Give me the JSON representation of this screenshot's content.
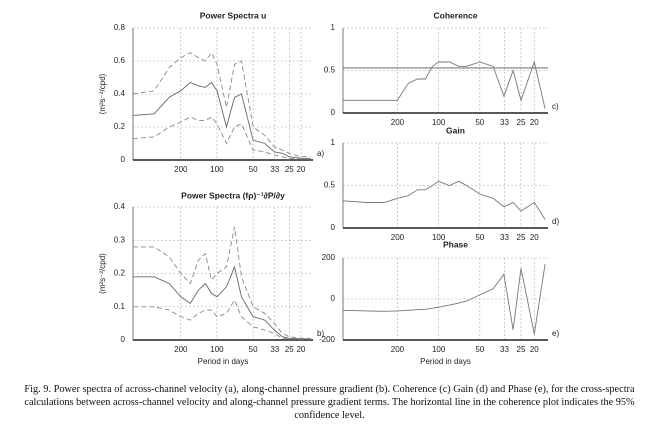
{
  "chart_data": [
    {
      "type": "line",
      "title": "Power Spectra u",
      "ylabel": "(m²s⁻²/cpd)",
      "panel_label": "a)",
      "xscale": "log",
      "grid": true,
      "x": [
        0.002,
        0.003,
        0.004,
        0.005,
        0.006,
        0.007,
        0.008,
        0.009,
        0.01,
        0.012,
        0.014,
        0.016,
        0.02,
        0.025,
        0.03,
        0.035,
        0.04,
        0.05,
        0.06
      ],
      "xlim": [
        0.002,
        0.063
      ],
      "xticks": [
        {
          "value": 0.005,
          "label": "200"
        },
        {
          "value": 0.01,
          "label": "100"
        },
        {
          "value": 0.02,
          "label": "50"
        },
        {
          "value": 0.0303,
          "label": "33"
        },
        {
          "value": 0.04,
          "label": "25"
        },
        {
          "value": 0.05,
          "label": "20"
        }
      ],
      "ylim": [
        0,
        0.8
      ],
      "yticks": [
        0,
        0.2,
        0.4,
        0.6,
        0.8
      ],
      "series": [
        {
          "color": "#888",
          "dash": true,
          "values": [
            0.4,
            0.42,
            0.56,
            0.62,
            0.65,
            0.62,
            0.6,
            0.65,
            0.58,
            0.32,
            0.58,
            0.6,
            0.2,
            0.15,
            0.08,
            0.06,
            0.04,
            0.02,
            0.02
          ]
        },
        {
          "color": "#666",
          "dash": false,
          "values": [
            0.27,
            0.28,
            0.38,
            0.42,
            0.47,
            0.45,
            0.44,
            0.47,
            0.42,
            0.2,
            0.38,
            0.4,
            0.12,
            0.1,
            0.05,
            0.04,
            0.02,
            0.01,
            0.01
          ]
        },
        {
          "color": "#888",
          "dash": true,
          "values": [
            0.13,
            0.14,
            0.2,
            0.23,
            0.26,
            0.24,
            0.24,
            0.26,
            0.22,
            0.1,
            0.2,
            0.22,
            0.06,
            0.05,
            0.03,
            0.02,
            0.01,
            0.005,
            0.005
          ]
        }
      ]
    },
    {
      "type": "line",
      "title": "Power Spectra (fρ)⁻¹∂P/∂y",
      "ylabel": "(m²s⁻²/cpd)",
      "xlabel": "Period in days",
      "panel_label": "b)",
      "xscale": "log",
      "grid": true,
      "x": [
        0.002,
        0.003,
        0.004,
        0.005,
        0.006,
        0.007,
        0.008,
        0.009,
        0.01,
        0.012,
        0.014,
        0.016,
        0.02,
        0.025,
        0.03,
        0.035,
        0.04,
        0.05,
        0.06
      ],
      "xlim": [
        0.002,
        0.063
      ],
      "xticks": [
        {
          "value": 0.005,
          "label": "200"
        },
        {
          "value": 0.01,
          "label": "100"
        },
        {
          "value": 0.02,
          "label": "50"
        },
        {
          "value": 0.0303,
          "label": "33"
        },
        {
          "value": 0.04,
          "label": "25"
        },
        {
          "value": 0.05,
          "label": "20"
        }
      ],
      "ylim": [
        0,
        0.4
      ],
      "yticks": [
        0,
        0.1,
        0.2,
        0.3,
        0.4
      ],
      "series": [
        {
          "color": "#888",
          "dash": true,
          "values": [
            0.28,
            0.28,
            0.25,
            0.2,
            0.17,
            0.24,
            0.26,
            0.18,
            0.2,
            0.22,
            0.34,
            0.19,
            0.1,
            0.08,
            0.05,
            0.02,
            0.01,
            0.005,
            0.005
          ]
        },
        {
          "color": "#666",
          "dash": false,
          "values": [
            0.19,
            0.19,
            0.17,
            0.13,
            0.11,
            0.15,
            0.17,
            0.14,
            0.13,
            0.16,
            0.22,
            0.13,
            0.07,
            0.06,
            0.03,
            0.01,
            0.005,
            0.003,
            0.003
          ]
        },
        {
          "color": "#888",
          "dash": true,
          "values": [
            0.1,
            0.1,
            0.09,
            0.07,
            0.06,
            0.08,
            0.09,
            0.09,
            0.07,
            0.08,
            0.12,
            0.07,
            0.04,
            0.03,
            0.02,
            0.005,
            0.003,
            0.002,
            0.002
          ]
        }
      ]
    },
    {
      "type": "line",
      "title": "Coherence",
      "panel_label": "c)",
      "xscale": "log",
      "grid": true,
      "hline": 0.53,
      "x": [
        0.002,
        0.003,
        0.004,
        0.005,
        0.006,
        0.007,
        0.008,
        0.009,
        0.01,
        0.012,
        0.014,
        0.016,
        0.02,
        0.025,
        0.03,
        0.035,
        0.04,
        0.05,
        0.06
      ],
      "xlim": [
        0.002,
        0.063
      ],
      "xticks": [
        {
          "value": 0.005,
          "label": "200"
        },
        {
          "value": 0.01,
          "label": "100"
        },
        {
          "value": 0.02,
          "label": "50"
        },
        {
          "value": 0.0303,
          "label": "33"
        },
        {
          "value": 0.04,
          "label": "25"
        },
        {
          "value": 0.05,
          "label": "20"
        }
      ],
      "ylim": [
        0,
        1
      ],
      "yticks": [
        0,
        0.5,
        1
      ],
      "series": [
        {
          "color": "#777",
          "dash": false,
          "values": [
            0.15,
            0.15,
            0.15,
            0.15,
            0.35,
            0.4,
            0.4,
            0.55,
            0.6,
            0.6,
            0.55,
            0.55,
            0.6,
            0.55,
            0.2,
            0.5,
            0.15,
            0.6,
            0.05
          ]
        }
      ]
    },
    {
      "type": "line",
      "title": "Gain",
      "panel_label": "d)",
      "xscale": "log",
      "grid": true,
      "x": [
        0.002,
        0.003,
        0.004,
        0.005,
        0.006,
        0.007,
        0.008,
        0.009,
        0.01,
        0.012,
        0.014,
        0.016,
        0.02,
        0.025,
        0.03,
        0.035,
        0.04,
        0.05,
        0.06
      ],
      "xlim": [
        0.002,
        0.063
      ],
      "xticks": [
        {
          "value": 0.005,
          "label": "200"
        },
        {
          "value": 0.01,
          "label": "100"
        },
        {
          "value": 0.02,
          "label": "50"
        },
        {
          "value": 0.0303,
          "label": "33"
        },
        {
          "value": 0.04,
          "label": "25"
        },
        {
          "value": 0.05,
          "label": "20"
        }
      ],
      "ylim": [
        0,
        1
      ],
      "yticks": [
        0,
        0.5,
        1
      ],
      "series": [
        {
          "color": "#777",
          "dash": false,
          "values": [
            0.32,
            0.3,
            0.3,
            0.35,
            0.38,
            0.45,
            0.45,
            0.5,
            0.55,
            0.5,
            0.55,
            0.5,
            0.4,
            0.35,
            0.25,
            0.3,
            0.2,
            0.3,
            0.1
          ]
        }
      ]
    },
    {
      "type": "line",
      "title": "Phase",
      "xlabel": "Period in days",
      "panel_label": "e)",
      "xscale": "log",
      "grid": true,
      "x": [
        0.002,
        0.003,
        0.004,
        0.005,
        0.006,
        0.007,
        0.008,
        0.009,
        0.01,
        0.012,
        0.014,
        0.016,
        0.02,
        0.025,
        0.03,
        0.035,
        0.04,
        0.05,
        0.06
      ],
      "xlim": [
        0.002,
        0.063
      ],
      "xticks": [
        {
          "value": 0.005,
          "label": "200"
        },
        {
          "value": 0.01,
          "label": "100"
        },
        {
          "value": 0.02,
          "label": "50"
        },
        {
          "value": 0.0303,
          "label": "33"
        },
        {
          "value": 0.04,
          "label": "25"
        },
        {
          "value": 0.05,
          "label": "20"
        }
      ],
      "ylim": [
        -200,
        200
      ],
      "yticks": [
        -200,
        0,
        200
      ],
      "series": [
        {
          "color": "#777",
          "dash": false,
          "values": [
            -55,
            -58,
            -60,
            -58,
            -55,
            -52,
            -50,
            -45,
            -40,
            -30,
            -20,
            -10,
            20,
            50,
            120,
            -150,
            150,
            -170,
            170
          ]
        }
      ]
    }
  ],
  "caption": "Fig. 9. Power spectra of across-channel velocity (a), along-channel pressure gradient (b). Coherence (c) Gain (d) and Phase (e), for the cross-spectra calculations between across-channel velocity and along-channel pressure gradient terms. The horizontal line in the coherence plot indicates the 95% confidence level."
}
